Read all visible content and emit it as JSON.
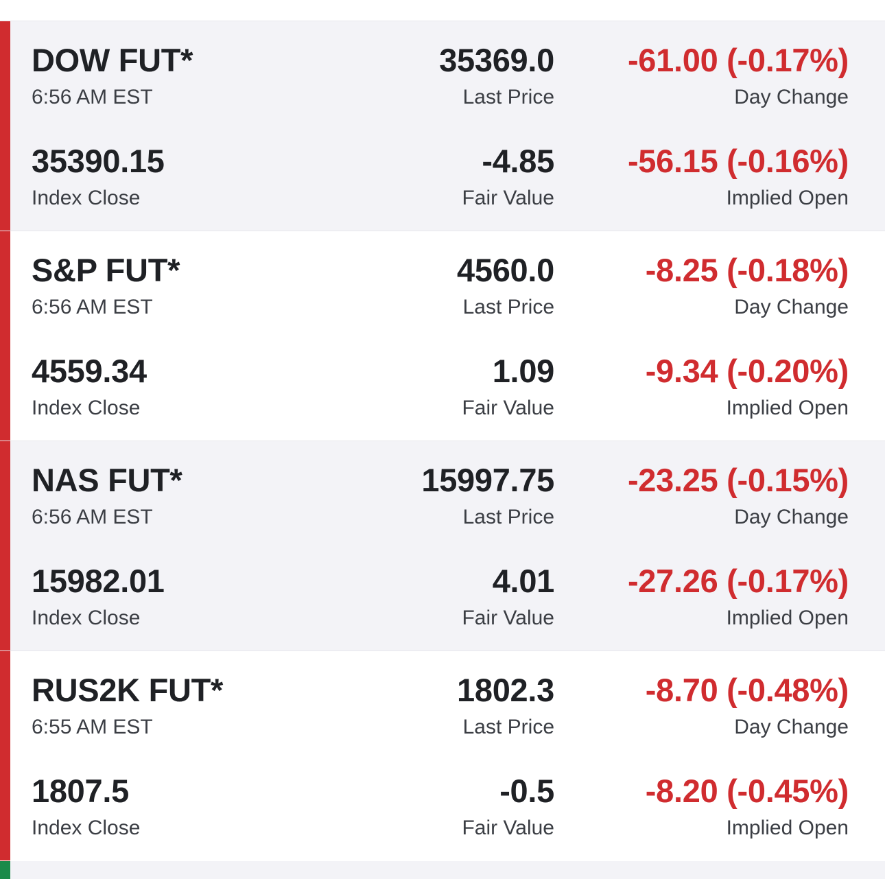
{
  "colors": {
    "negative": "#d02c2f",
    "positive": "#1a8a4a",
    "text": "#1f2125",
    "muted": "#3b3e44",
    "row_shade": "#f3f3f7"
  },
  "futures": [
    {
      "name": "DOW FUT*",
      "time": "6:56 AM EST",
      "last_price": "35369.0",
      "last_price_label": "Last Price",
      "day_change": "-61.00 (-0.17%)",
      "day_change_label": "Day Change",
      "index_close": "35390.15",
      "index_close_label": "Index Close",
      "fair_value": "-4.85",
      "fair_value_label": "Fair Value",
      "implied_open": "-56.15 (-0.16%)",
      "implied_open_label": "Implied Open"
    },
    {
      "name": "S&P FUT*",
      "time": "6:56 AM EST",
      "last_price": "4560.0",
      "last_price_label": "Last Price",
      "day_change": "-8.25 (-0.18%)",
      "day_change_label": "Day Change",
      "index_close": "4559.34",
      "index_close_label": "Index Close",
      "fair_value": "1.09",
      "fair_value_label": "Fair Value",
      "implied_open": "-9.34 (-0.20%)",
      "implied_open_label": "Implied Open"
    },
    {
      "name": "NAS FUT*",
      "time": "6:56 AM EST",
      "last_price": "15997.75",
      "last_price_label": "Last Price",
      "day_change": "-23.25 (-0.15%)",
      "day_change_label": "Day Change",
      "index_close": "15982.01",
      "index_close_label": "Index Close",
      "fair_value": "4.01",
      "fair_value_label": "Fair Value",
      "implied_open": "-27.26 (-0.17%)",
      "implied_open_label": "Implied Open"
    },
    {
      "name": "RUS2K FUT*",
      "time": "6:55 AM EST",
      "last_price": "1802.3",
      "last_price_label": "Last Price",
      "day_change": "-8.70 (-0.48%)",
      "day_change_label": "Day Change",
      "index_close": "1807.5",
      "index_close_label": "Index Close",
      "fair_value": "-0.5",
      "fair_value_label": "Fair Value",
      "implied_open": "-8.20 (-0.45%)",
      "implied_open_label": "Implied Open"
    }
  ]
}
